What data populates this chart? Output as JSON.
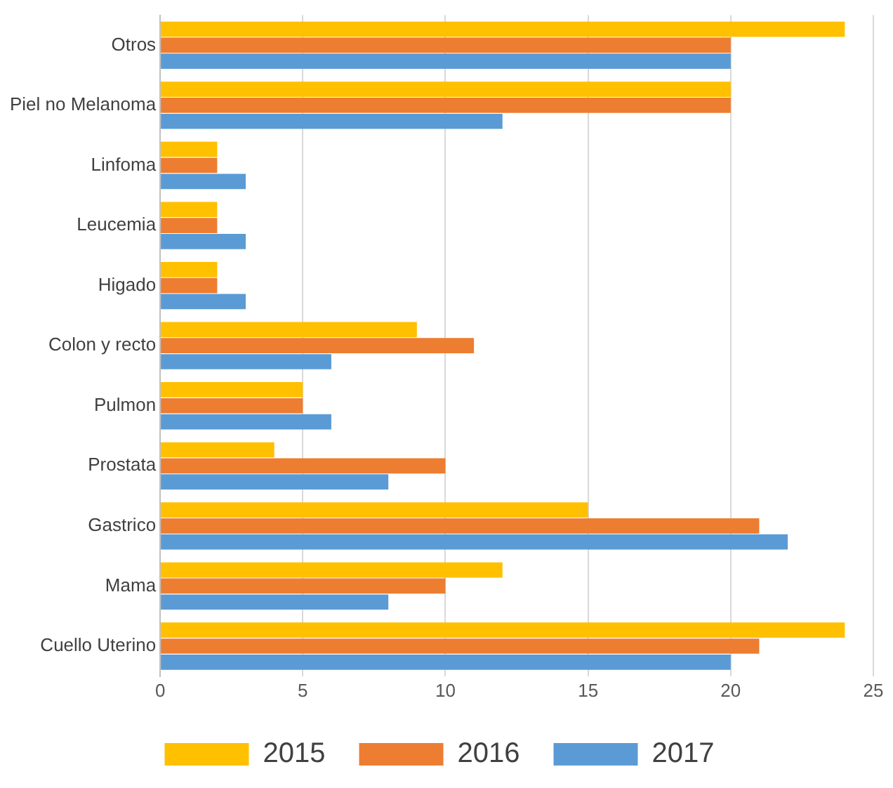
{
  "chart_data": {
    "type": "bar",
    "orientation": "horizontal",
    "categories": [
      "Otros",
      "Piel no Melanoma",
      "Linfoma",
      "Leucemia",
      "Higado",
      "Colon y recto",
      "Pulmon",
      "Prostata",
      "Gastrico",
      "Mama",
      "Cuello Uterino"
    ],
    "series": [
      {
        "name": "2015",
        "color": "#ffc000",
        "values": [
          24,
          20,
          2,
          2,
          2,
          9,
          5,
          4,
          15,
          12,
          24
        ]
      },
      {
        "name": "2016",
        "color": "#ed7d31",
        "values": [
          20,
          20,
          2,
          2,
          2,
          11,
          5,
          10,
          21,
          10,
          21
        ]
      },
      {
        "name": "2017",
        "color": "#5b9bd5",
        "values": [
          20,
          12,
          3,
          3,
          3,
          6,
          6,
          8,
          22,
          8,
          20
        ]
      }
    ],
    "xlim": [
      0,
      25
    ],
    "xticks": [
      0,
      5,
      10,
      15,
      20,
      25
    ],
    "grid": "x",
    "legend": "bottom"
  }
}
